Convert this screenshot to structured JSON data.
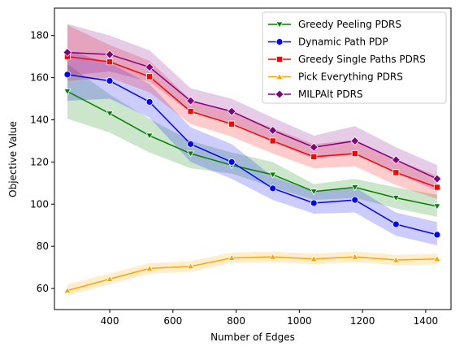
{
  "chart_data": {
    "type": "line",
    "title": "",
    "xlabel": "Number of Edges",
    "ylabel": "Objective Value",
    "xlim": [
      225,
      1480
    ],
    "ylim": [
      50,
      193
    ],
    "xticks": [
      400,
      600,
      800,
      1000,
      1200,
      1400
    ],
    "yticks": [
      60,
      80,
      100,
      120,
      140,
      160,
      180
    ],
    "grid": false,
    "legend_position": "top-right",
    "x": [
      266,
      400,
      526,
      656,
      786,
      916,
      1046,
      1176,
      1306,
      1436
    ],
    "series": [
      {
        "name": "Greedy Peeling PDRS",
        "color": "#008000",
        "marker": "triangle-down",
        "values": [
          153.5,
          143,
          132.5,
          124,
          118.5,
          114,
          106,
          108,
          103,
          99
        ],
        "lower": [
          140.5,
          134,
          124.5,
          117,
          114.5,
          108,
          102,
          103,
          98,
          94
        ],
        "upper": [
          166.5,
          152,
          140.5,
          130,
          124.5,
          120,
          109.5,
          112,
          108,
          104.5
        ]
      },
      {
        "name": "Dynamic Path PDP",
        "color": "#0000ff",
        "marker": "circle",
        "values": [
          161.5,
          158.5,
          148.5,
          128.5,
          120,
          107.5,
          100.5,
          102,
          90.5,
          85.5
        ],
        "lower": [
          149,
          150,
          141,
          120,
          112,
          102,
          95.5,
          96,
          85,
          80.5
        ],
        "upper": [
          173,
          167,
          157,
          136.5,
          128.5,
          113,
          106,
          108,
          96,
          91.5
        ]
      },
      {
        "name": "Greedy Single Paths PDRS",
        "color": "#ff0000",
        "marker": "square",
        "values": [
          170,
          167.5,
          160.5,
          144,
          138,
          130,
          122.5,
          124,
          115,
          108
        ],
        "lower": [
          158.5,
          160,
          153,
          138,
          132,
          124,
          117,
          118,
          109,
          102.5
        ],
        "upper": [
          185,
          175.5,
          168,
          149.5,
          144,
          136,
          128.5,
          130.5,
          121,
          113.5
        ]
      },
      {
        "name": "Pick Everything PDRS",
        "color": "#ffa500",
        "marker": "triangle-up",
        "values": [
          59,
          64.5,
          69.5,
          70.5,
          74.5,
          75,
          74,
          75,
          73.5,
          74
        ],
        "lower": [
          56.5,
          62,
          67,
          68,
          72,
          72.5,
          71.5,
          72.5,
          71,
          71.5
        ],
        "upper": [
          62,
          67,
          72,
          73,
          77,
          77.5,
          76.5,
          77.5,
          76,
          76.5
        ]
      },
      {
        "name": "MILPAlt PDRS",
        "color": "#800080",
        "marker": "diamond",
        "values": [
          172,
          171,
          165,
          149,
          144,
          135,
          127,
          130,
          121,
          112
        ],
        "lower": [
          161,
          163,
          158,
          143.5,
          138.5,
          129.5,
          121.5,
          123.5,
          115,
          106
        ],
        "upper": [
          185.5,
          180,
          173,
          155,
          150,
          141,
          132.5,
          137,
          127,
          118.5
        ]
      }
    ]
  }
}
